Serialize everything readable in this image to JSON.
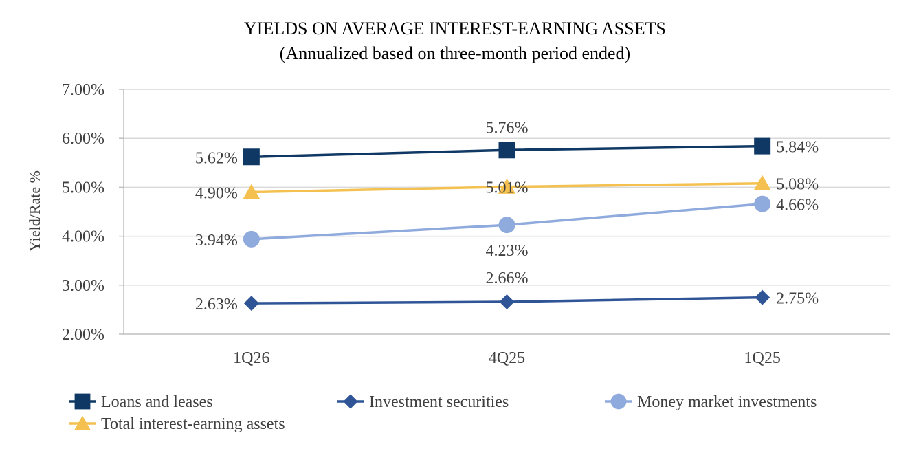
{
  "chart_data": {
    "type": "line",
    "title": "YIELDS ON AVERAGE INTEREST-EARNING ASSETS",
    "subtitle": "(Annualized based on three-month period ended)",
    "xlabel": "",
    "ylabel": "Yield/Rate %",
    "categories": [
      "1Q26",
      "4Q25",
      "1Q25"
    ],
    "ylim": [
      2.0,
      7.0
    ],
    "yticks": [
      "2.00%",
      "3.00%",
      "4.00%",
      "5.00%",
      "6.00%",
      "7.00%"
    ],
    "grid": true,
    "legend_position": "bottom",
    "series": [
      {
        "name": "Loans and leases",
        "values": [
          5.62,
          5.76,
          5.84
        ],
        "labels": [
          "5.62%",
          "5.76%",
          "5.84%"
        ],
        "color": "#0f3864",
        "marker": "square"
      },
      {
        "name": "Investment securities",
        "values": [
          2.63,
          2.66,
          2.75
        ],
        "labels": [
          "2.63%",
          "2.66%",
          "2.75%"
        ],
        "color": "#2f5597",
        "marker": "diamond"
      },
      {
        "name": "Money market investments",
        "values": [
          3.94,
          4.23,
          4.66
        ],
        "labels": [
          "3.94%",
          "4.23%",
          "4.66%"
        ],
        "color": "#8faadc",
        "marker": "circle"
      },
      {
        "name": "Total interest-earning assets",
        "values": [
          4.9,
          5.01,
          5.08
        ],
        "labels": [
          "4.90%",
          "5.01%",
          "5.08%"
        ],
        "color": "#f4c150",
        "marker": "triangle"
      }
    ]
  }
}
